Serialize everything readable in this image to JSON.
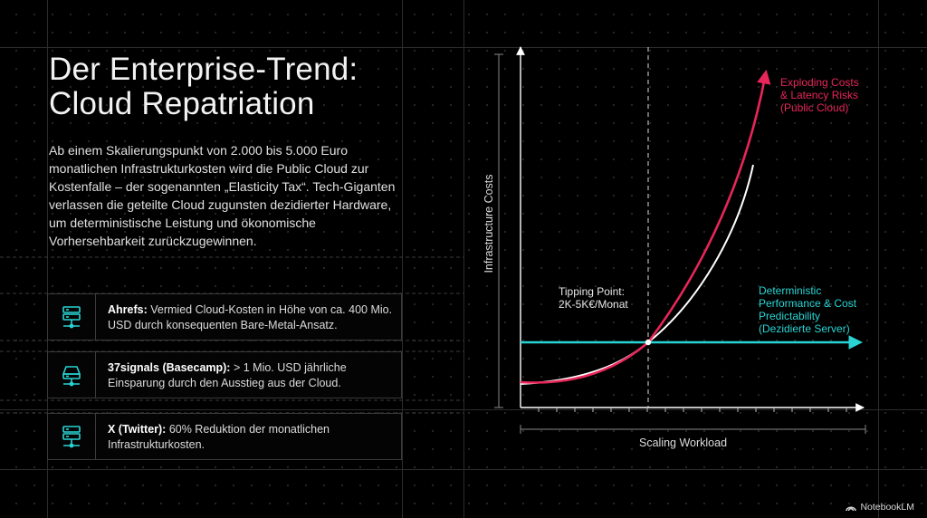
{
  "heading": {
    "line1": "Der Enterprise-Trend:",
    "line2": "Cloud Repatriation"
  },
  "intro": "Ab einem Skalierungspunkt von 2.000 bis 5.000 Euro monatlichen Infrastrukturkosten wird die Public Cloud zur Kostenfalle – der sogenannten „Elasticity Tax“. Tech-Giganten verlassen die geteilte Cloud zugunsten dezidierter Hardware, um deterministische Leistung und ökonomische Vorhersehbarkeit zurückzugewinnen.",
  "cases": [
    {
      "company": "Ahrefs:",
      "text": " Vermied Cloud-Kosten in Höhe von ca. 400 Mio. USD durch konsequenten Bare-Metal-Ansatz.",
      "icon": "server-icon"
    },
    {
      "company": "37signals (Basecamp):",
      "text": " > 1 Mio. USD jährliche Einsparung durch den Ausstieg aus der Cloud.",
      "icon": "storage-network-icon"
    },
    {
      "company": "X (Twitter):",
      "text": " 60% Reduktion der monatlichen Infrastrukturkosten.",
      "icon": "server-icon"
    }
  ],
  "chart": {
    "y_label": "Infrastructure Costs",
    "x_label": "Scaling Workload",
    "tipping_point": {
      "line1": "Tipping Point:",
      "line2": "2K-5K€/Monat"
    },
    "public_cloud_label": [
      "Exploding Costs",
      "& Latency Risks",
      "(Public Cloud)"
    ],
    "dedicated_label": [
      "Deterministic",
      "Performance & Cost",
      "Predictability",
      "(Dezidierte Server)"
    ],
    "colors": {
      "public_cloud": "#e8265a",
      "dedicated": "#2ad4d4",
      "reference": "#ffffff",
      "axes": "#ffffff"
    }
  },
  "brand": {
    "name": "NotebookLM",
    "icon": "notebooklm-logo-icon"
  }
}
